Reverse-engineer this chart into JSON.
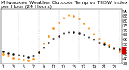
{
  "title": "Milwaukee Weather Outdoor Temp vs THSW Index",
  "hours": [
    1,
    2,
    3,
    4,
    5,
    6,
    7,
    8,
    9,
    10,
    11,
    12,
    13,
    14,
    15,
    16,
    17,
    18,
    19,
    20,
    21,
    22,
    23,
    24
  ],
  "temp": [
    48,
    46,
    45,
    44,
    43,
    42,
    43,
    47,
    52,
    57,
    61,
    64,
    67,
    68,
    68,
    67,
    65,
    63,
    60,
    57,
    55,
    53,
    51,
    50
  ],
  "thsw": [
    45,
    43,
    41,
    40,
    39,
    38,
    40,
    47,
    56,
    64,
    72,
    78,
    83,
    86,
    85,
    82,
    77,
    72,
    66,
    61,
    57,
    54,
    51,
    48
  ],
  "temp_color": "#000000",
  "thsw_color": "#ff8800",
  "red_marker_color": "#cc0000",
  "bg_color": "#ffffff",
  "grid_color": "#aaaaaa",
  "ylim_min": 35,
  "ylim_max": 92,
  "y_ticks": [
    35,
    40,
    45,
    50,
    55,
    60,
    65,
    70,
    75,
    80,
    85,
    90
  ],
  "y_tick_labels": [
    "35",
    "40",
    "45",
    "50",
    "55",
    "60",
    "65",
    "70",
    "75",
    "80",
    "85",
    "90"
  ],
  "x_ticks_every": 2,
  "title_fontsize": 4.5,
  "tick_fontsize": 3.5
}
